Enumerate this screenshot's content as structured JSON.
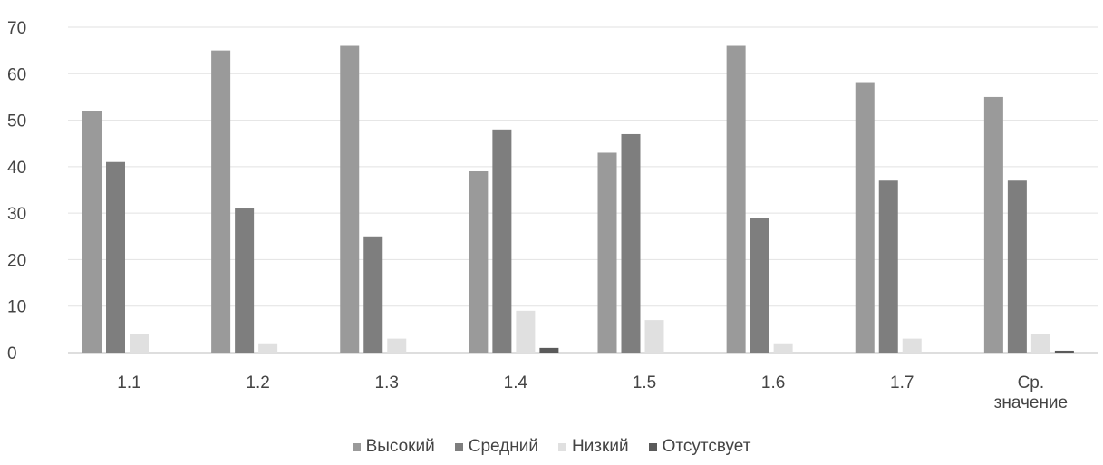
{
  "chart_data": {
    "type": "bar",
    "categories": [
      "1.1",
      "1.2",
      "1.3",
      "1.4",
      "1.5",
      "1.6",
      "1.7",
      "Ср. значение"
    ],
    "category_lines": [
      [
        "1.1"
      ],
      [
        "1.2"
      ],
      [
        "1.3"
      ],
      [
        "1.4"
      ],
      [
        "1.5"
      ],
      [
        "1.6"
      ],
      [
        "1.7"
      ],
      [
        "Ср.",
        "значение"
      ]
    ],
    "series": [
      {
        "name": "Высокий",
        "color": "#9a9a9a",
        "values": [
          52,
          65,
          66,
          39,
          43,
          66,
          58,
          55
        ]
      },
      {
        "name": "Средний",
        "color": "#7e7e7e",
        "values": [
          41,
          31,
          25,
          48,
          47,
          29,
          37,
          37
        ]
      },
      {
        "name": "Низкий",
        "color": "#e0e0e0",
        "values": [
          4,
          2,
          3,
          9,
          7,
          2,
          3,
          4
        ]
      },
      {
        "name": "Отсутсвует",
        "color": "#5a5a5a",
        "values": [
          0,
          0,
          0,
          1,
          0,
          0,
          0,
          0.4
        ]
      }
    ],
    "yticks": [
      0,
      10,
      20,
      30,
      40,
      50,
      60,
      70
    ],
    "ylim": [
      0,
      70
    ],
    "grid": true,
    "legend_position": "bottom"
  }
}
